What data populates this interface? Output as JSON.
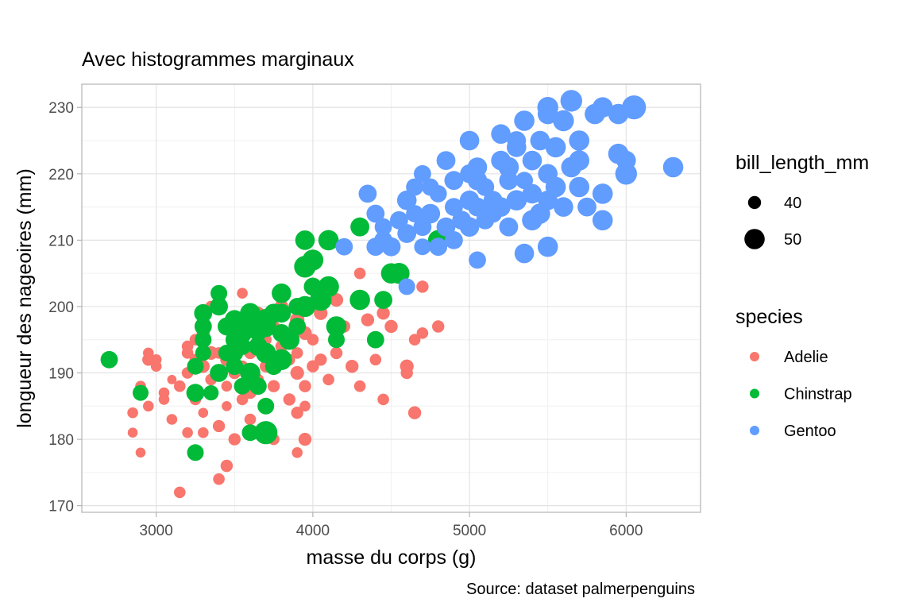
{
  "chart_data": {
    "type": "scatter",
    "title": "Avec histogrammes marginaux",
    "xlabel": "masse du corps (g)",
    "ylabel": "longueur des nageoires (mm)",
    "caption": "Source: dataset palmerpenguins",
    "xlim": [
      2525,
      6475
    ],
    "ylim": [
      169,
      233.5
    ],
    "x_ticks": [
      3000,
      4000,
      5000,
      6000
    ],
    "y_ticks": [
      170,
      180,
      190,
      200,
      210,
      220,
      230
    ],
    "grid": true,
    "legend_position": "right",
    "size_legend": {
      "title": "bill_length_mm",
      "entries": [
        40,
        50
      ]
    },
    "color_legend": {
      "title": "species",
      "entries": [
        {
          "name": "Adelie",
          "color": "#F8766D"
        },
        {
          "name": "Chinstrap",
          "color": "#00BA38"
        },
        {
          "name": "Gentoo",
          "color": "#619CFF"
        }
      ]
    },
    "series": [
      {
        "name": "Adelie",
        "color": "#F8766D",
        "points": [
          [
            3150,
            172,
            38
          ],
          [
            3400,
            174,
            38
          ],
          [
            3450,
            176,
            39
          ],
          [
            2900,
            178,
            36
          ],
          [
            3900,
            178,
            37
          ],
          [
            3950,
            180,
            40
          ],
          [
            3500,
            180,
            39
          ],
          [
            3750,
            180,
            38
          ],
          [
            2850,
            181,
            36
          ],
          [
            3200,
            181,
            37
          ],
          [
            3300,
            181,
            37
          ],
          [
            3650,
            181,
            40
          ],
          [
            2850,
            184,
            37
          ],
          [
            3100,
            183,
            37
          ],
          [
            3400,
            182,
            39
          ],
          [
            3600,
            183,
            38
          ],
          [
            3900,
            184,
            39
          ],
          [
            3950,
            185,
            37
          ],
          [
            4650,
            184,
            40
          ],
          [
            3300,
            184,
            36
          ],
          [
            2950,
            185,
            37
          ],
          [
            3050,
            186,
            37
          ],
          [
            3250,
            186,
            38
          ],
          [
            3550,
            186,
            38
          ],
          [
            3850,
            186,
            39
          ],
          [
            4450,
            186,
            38
          ],
          [
            2900,
            188,
            37
          ],
          [
            3150,
            188,
            38
          ],
          [
            3450,
            188,
            37
          ],
          [
            4300,
            188,
            38
          ],
          [
            3750,
            188,
            39
          ],
          [
            2900,
            187,
            35
          ],
          [
            3050,
            187,
            37
          ],
          [
            3350,
            189,
            38
          ],
          [
            3650,
            189,
            38
          ],
          [
            4100,
            189,
            38
          ],
          [
            3500,
            190,
            39
          ],
          [
            3900,
            190,
            41
          ],
          [
            3200,
            190,
            38
          ],
          [
            3000,
            191,
            37
          ],
          [
            4600,
            190,
            39
          ],
          [
            3300,
            191,
            40
          ],
          [
            3550,
            191,
            38
          ],
          [
            3700,
            191,
            39
          ],
          [
            4000,
            191,
            39
          ],
          [
            4250,
            191,
            40
          ],
          [
            3000,
            192,
            37
          ],
          [
            3250,
            192,
            38
          ],
          [
            3450,
            192,
            40
          ],
          [
            3850,
            192,
            38
          ],
          [
            4050,
            192,
            39
          ],
          [
            4400,
            192,
            38
          ],
          [
            4600,
            191,
            41
          ],
          [
            2950,
            193,
            37
          ],
          [
            3200,
            193,
            38
          ],
          [
            3400,
            193,
            38
          ],
          [
            3600,
            193,
            39
          ],
          [
            3900,
            193,
            38
          ],
          [
            4150,
            193,
            39
          ],
          [
            3800,
            194,
            39
          ],
          [
            3250,
            195,
            38
          ],
          [
            3500,
            195,
            37
          ],
          [
            3700,
            195,
            38
          ],
          [
            4650,
            195,
            38
          ],
          [
            3300,
            196,
            40
          ],
          [
            3550,
            196,
            40
          ],
          [
            3950,
            196,
            41
          ],
          [
            4700,
            196,
            38
          ],
          [
            3450,
            197,
            39
          ],
          [
            3750,
            197,
            39
          ],
          [
            4200,
            197,
            39
          ],
          [
            4500,
            197,
            40
          ],
          [
            4800,
            197,
            39
          ],
          [
            3500,
            198,
            40
          ],
          [
            3900,
            198,
            42
          ],
          [
            4350,
            198,
            40
          ],
          [
            3650,
            199,
            40
          ],
          [
            4050,
            199,
            41
          ],
          [
            4450,
            199,
            40
          ],
          [
            3350,
            200,
            38
          ],
          [
            3800,
            200,
            41
          ],
          [
            3550,
            202,
            37
          ],
          [
            4300,
            205,
            38
          ],
          [
            4700,
            203,
            39
          ],
          [
            3400,
            201,
            39
          ],
          [
            3100,
            189,
            35
          ],
          [
            3600,
            187,
            39
          ],
          [
            3200,
            194,
            38
          ],
          [
            4000,
            195,
            38
          ],
          [
            4150,
            201,
            41
          ],
          [
            3450,
            185,
            36
          ],
          [
            3650,
            194,
            40
          ],
          [
            3950,
            188,
            39
          ],
          [
            3350,
            193,
            41
          ],
          [
            2950,
            192,
            39
          ]
        ]
      },
      {
        "name": "Chinstrap",
        "color": "#00BA38",
        "points": [
          [
            2700,
            192,
            46
          ],
          [
            2900,
            187,
            44
          ],
          [
            3250,
            178,
            45
          ],
          [
            3700,
            181,
            54
          ],
          [
            3600,
            181,
            45
          ],
          [
            3250,
            187,
            47
          ],
          [
            3350,
            187,
            43
          ],
          [
            3700,
            185,
            45
          ],
          [
            3650,
            188,
            46
          ],
          [
            3550,
            188,
            45
          ],
          [
            3250,
            191,
            45
          ],
          [
            3400,
            190,
            47
          ],
          [
            3500,
            191,
            46
          ],
          [
            3600,
            190,
            50
          ],
          [
            3750,
            191,
            46
          ],
          [
            3800,
            192,
            51
          ],
          [
            3300,
            193,
            44
          ],
          [
            3450,
            193,
            45
          ],
          [
            3550,
            194,
            46
          ],
          [
            3650,
            194,
            48
          ],
          [
            3700,
            193,
            50
          ],
          [
            3500,
            195,
            47
          ],
          [
            3300,
            195,
            45
          ],
          [
            3850,
            195,
            50
          ],
          [
            4400,
            195,
            46
          ],
          [
            3550,
            196,
            49
          ],
          [
            3650,
            196,
            45
          ],
          [
            3800,
            196,
            47
          ],
          [
            4150,
            195,
            45
          ],
          [
            3300,
            197,
            46
          ],
          [
            3450,
            197,
            47
          ],
          [
            3700,
            197,
            51
          ],
          [
            3900,
            197,
            46
          ],
          [
            4150,
            197,
            50
          ],
          [
            3300,
            199,
            47
          ],
          [
            3500,
            198,
            49
          ],
          [
            3700,
            198,
            52
          ],
          [
            3600,
            199,
            50
          ],
          [
            3800,
            199,
            48
          ],
          [
            3400,
            200,
            47
          ],
          [
            3950,
            200,
            51
          ],
          [
            3800,
            202,
            49
          ],
          [
            4050,
            201,
            52
          ],
          [
            4300,
            201,
            50
          ],
          [
            4450,
            201,
            47
          ],
          [
            3400,
            202,
            45
          ],
          [
            4100,
            203,
            51
          ],
          [
            4500,
            205,
            50
          ],
          [
            4550,
            205,
            51
          ],
          [
            3950,
            206,
            52
          ],
          [
            4000,
            207,
            51
          ],
          [
            3950,
            210,
            49
          ],
          [
            4100,
            210,
            50
          ],
          [
            4300,
            212,
            48
          ],
          [
            4800,
            210,
            50
          ],
          [
            3900,
            200,
            46
          ],
          [
            3750,
            199,
            48
          ],
          [
            3600,
            197,
            49
          ],
          [
            4000,
            203,
            47
          ],
          [
            3500,
            193,
            46
          ]
        ]
      },
      {
        "name": "Gentoo",
        "color": "#619CFF",
        "points": [
          [
            4600,
            203,
            45
          ],
          [
            4700,
            209,
            45
          ],
          [
            4200,
            209,
            46
          ],
          [
            4400,
            209,
            47
          ],
          [
            4500,
            209,
            48
          ],
          [
            4800,
            209,
            47
          ],
          [
            4900,
            210,
            47
          ],
          [
            5050,
            207,
            46
          ],
          [
            5350,
            208,
            49
          ],
          [
            5500,
            209,
            50
          ],
          [
            4450,
            210,
            47
          ],
          [
            4600,
            211,
            48
          ],
          [
            4700,
            212,
            47
          ],
          [
            4850,
            212,
            48
          ],
          [
            5000,
            212,
            49
          ],
          [
            5100,
            213,
            47
          ],
          [
            5250,
            212,
            48
          ],
          [
            5400,
            213,
            50
          ],
          [
            5850,
            213,
            50
          ],
          [
            4400,
            214,
            47
          ],
          [
            4650,
            214,
            46
          ],
          [
            4750,
            214,
            49
          ],
          [
            4900,
            215,
            47
          ],
          [
            5050,
            215,
            48
          ],
          [
            5200,
            215,
            49
          ],
          [
            5450,
            214,
            50
          ],
          [
            5600,
            215,
            49
          ],
          [
            5750,
            215,
            48
          ],
          [
            4600,
            216,
            49
          ],
          [
            4800,
            217,
            46
          ],
          [
            5000,
            216,
            49
          ],
          [
            5150,
            216,
            48
          ],
          [
            5300,
            216,
            50
          ],
          [
            5500,
            216,
            49
          ],
          [
            4350,
            217,
            47
          ],
          [
            4650,
            218,
            46
          ],
          [
            4750,
            218,
            46
          ],
          [
            5550,
            218,
            50
          ],
          [
            5850,
            217,
            50
          ],
          [
            4900,
            219,
            48
          ],
          [
            5050,
            219,
            49
          ],
          [
            5350,
            219,
            46
          ],
          [
            5700,
            218,
            50
          ],
          [
            4700,
            220,
            46
          ],
          [
            5000,
            220,
            48
          ],
          [
            5250,
            221,
            50
          ],
          [
            5500,
            220,
            49
          ],
          [
            6000,
            220,
            52
          ],
          [
            5700,
            222,
            50
          ],
          [
            6300,
            221,
            50
          ],
          [
            4850,
            222,
            48
          ],
          [
            5050,
            221,
            49
          ],
          [
            5200,
            222,
            49
          ],
          [
            5400,
            222,
            49
          ],
          [
            5650,
            221,
            50
          ],
          [
            6000,
            222,
            49
          ],
          [
            5300,
            224,
            49
          ],
          [
            5550,
            224,
            50
          ],
          [
            5950,
            223,
            50
          ],
          [
            5450,
            225,
            49
          ],
          [
            5700,
            225,
            50
          ],
          [
            5000,
            225,
            49
          ],
          [
            5200,
            226,
            49
          ],
          [
            5350,
            228,
            50
          ],
          [
            5500,
            229,
            50
          ],
          [
            5600,
            228,
            51
          ],
          [
            5800,
            229,
            50
          ],
          [
            5950,
            229,
            50
          ],
          [
            5500,
            230,
            51
          ],
          [
            5650,
            231,
            52
          ],
          [
            5850,
            230,
            50
          ],
          [
            6050,
            230,
            55
          ],
          [
            5300,
            225,
            48
          ],
          [
            5100,
            218,
            47
          ],
          [
            4950,
            213,
            48
          ],
          [
            5400,
            217,
            49
          ],
          [
            5150,
            214,
            47
          ],
          [
            4550,
            213,
            47
          ],
          [
            5250,
            219,
            48
          ],
          [
            4450,
            212,
            46
          ]
        ]
      }
    ]
  }
}
